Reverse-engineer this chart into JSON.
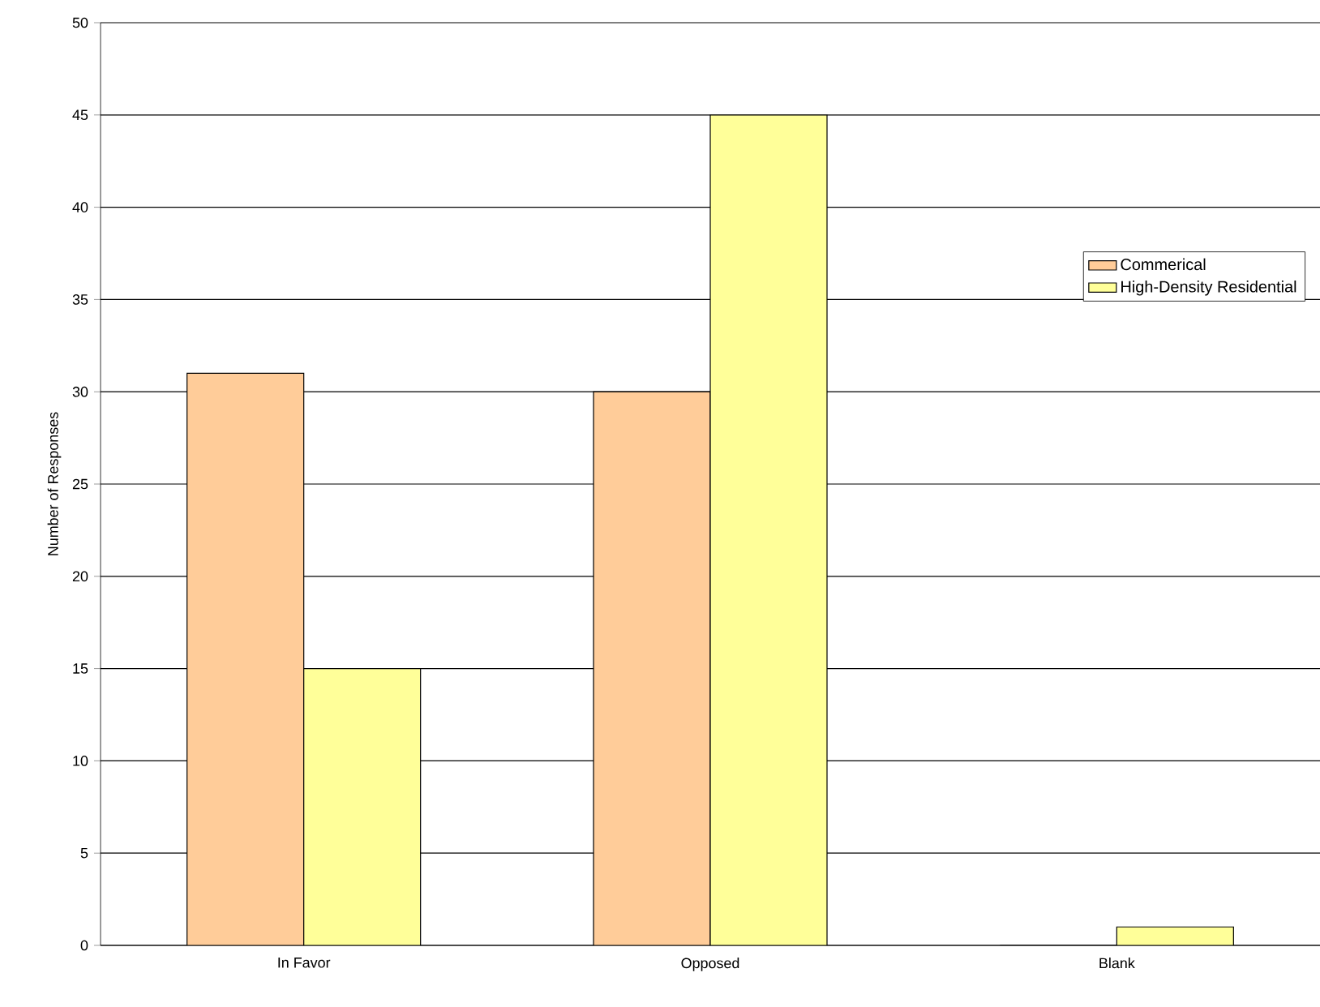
{
  "chart_data": {
    "type": "bar",
    "ylabel": "Number of Responses",
    "categories": [
      "In Favor",
      "Opposed",
      "Blank"
    ],
    "series": [
      {
        "name": "Commerical",
        "color": "#ffcc99",
        "values": [
          31,
          30,
          0
        ]
      },
      {
        "name": "High-Density Residential",
        "color": "#ffff99",
        "values": [
          15,
          45,
          1
        ]
      }
    ],
    "ylim": [
      0,
      50
    ],
    "yticks": [
      0,
      5,
      10,
      15,
      20,
      25,
      30,
      35,
      40,
      45,
      50
    ],
    "grid": "y",
    "legend": "right"
  }
}
